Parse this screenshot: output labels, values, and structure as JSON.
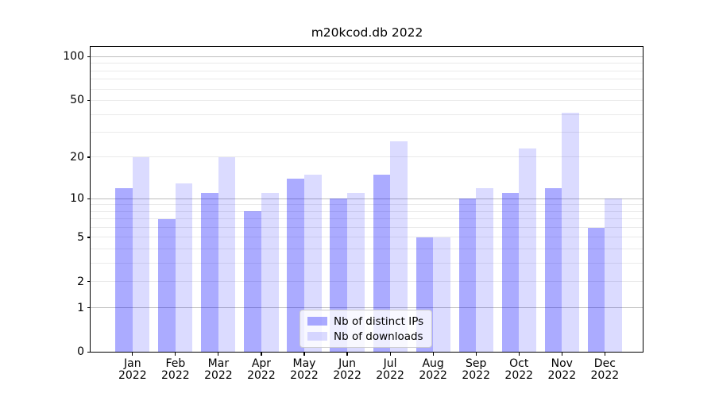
{
  "window": {
    "background": "#ffffff"
  },
  "chart_data": {
    "type": "bar",
    "title": "m20kcod.db 2022",
    "categories": [
      "Jan",
      "Feb",
      "Mar",
      "Apr",
      "May",
      "Jun",
      "Jul",
      "Aug",
      "Sep",
      "Oct",
      "Nov",
      "Dec"
    ],
    "category_year_label": "2022",
    "series": [
      {
        "name": "Nb of distinct IPs",
        "color": "rgba(0,0,255,0.33)",
        "values": [
          12,
          7,
          11,
          8,
          14,
          10,
          15,
          5,
          10,
          11,
          12,
          6
        ]
      },
      {
        "name": "Nb of downloads",
        "color": "rgba(0,0,255,0.14)",
        "values": [
          20,
          13,
          20,
          11,
          15,
          11,
          26,
          5,
          12,
          23,
          41,
          10
        ]
      }
    ],
    "y_axis": {
      "scale": "log1p",
      "tick_values": [
        0,
        1,
        2,
        5,
        10,
        20,
        50,
        100
      ],
      "major_gridlines": [
        1,
        10,
        100
      ],
      "minor_gridlines": [
        2,
        3,
        4,
        5,
        6,
        7,
        8,
        9,
        20,
        30,
        40,
        50,
        60,
        70,
        80,
        90
      ],
      "range": [
        0,
        118
      ]
    },
    "legend": {
      "position": "lower-center",
      "entries": [
        "Nb of distinct IPs",
        "Nb of downloads"
      ]
    },
    "grid": true,
    "style": {
      "major_gridline_color": "#bdbdbd",
      "minor_gridline_color": "#eaeaea",
      "axis_frame_color": "#000000",
      "tick_label_color": "#000000",
      "legend_border_color": "#cccccc",
      "legend_background": "rgba(255,255,255,0.8)"
    }
  }
}
